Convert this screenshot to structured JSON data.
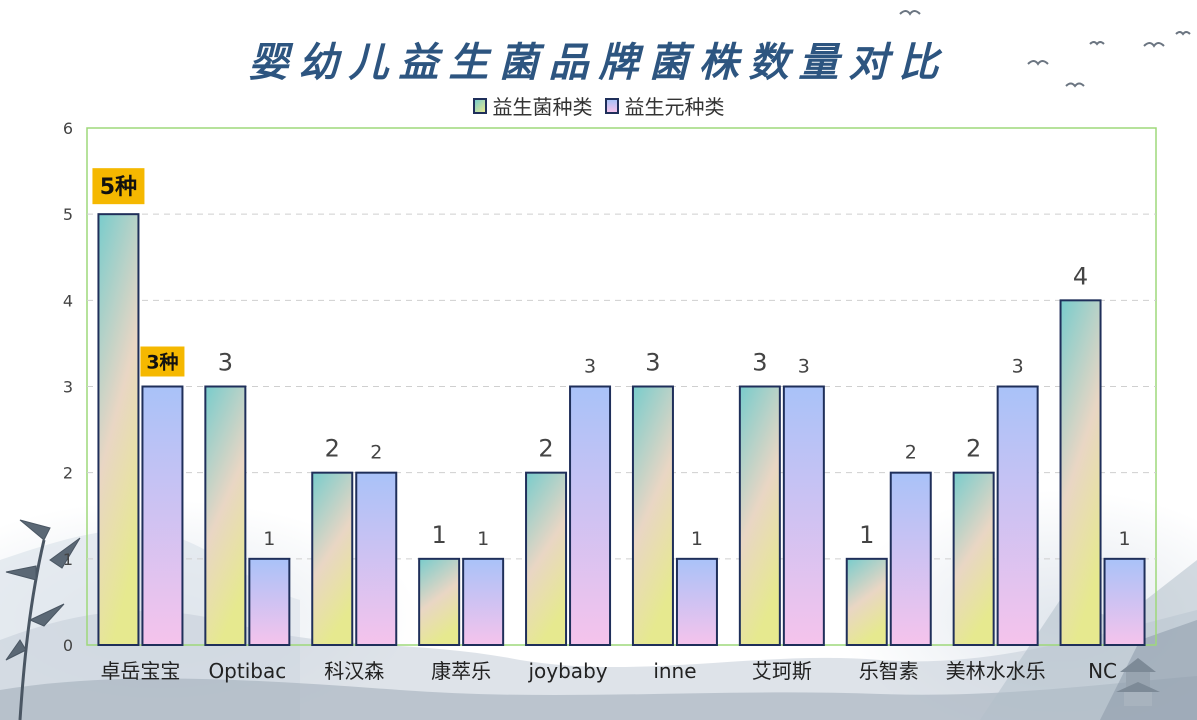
{
  "chart_data": {
    "type": "bar",
    "title": "婴幼儿益生菌品牌菌株数量对比",
    "categories": [
      "卓岳宝宝",
      "Optibac",
      "科汉森",
      "康萃乐",
      "joybaby",
      "inne",
      "艾珂斯",
      "乐智素",
      "美林水水乐",
      "NC"
    ],
    "series": [
      {
        "name": "益生菌种类",
        "values": [
          5,
          3,
          2,
          1,
          2,
          3,
          3,
          1,
          2,
          4
        ],
        "labels": [
          "5种",
          "3",
          "2",
          "1",
          "2",
          "3",
          "3",
          "1",
          "2",
          "4"
        ]
      },
      {
        "name": "益生元种类",
        "values": [
          3,
          1,
          2,
          1,
          3,
          1,
          3,
          2,
          3,
          1
        ],
        "labels": [
          "3种",
          "1",
          "2",
          "1",
          "3",
          "1",
          "3",
          "2",
          "3",
          "1"
        ]
      }
    ],
    "ylim": [
      0,
      6
    ],
    "yticks": [
      "0",
      "1",
      "2",
      "3",
      "4",
      "5",
      "6"
    ],
    "ytick_labels": [
      "0",
      "1",
      "2",
      "3",
      "4",
      "5",
      "6"
    ],
    "grid": true,
    "legend_position": "top-center",
    "colors": {
      "series1_top": "#7ecfcf",
      "series1_bottom": "#e8e893",
      "series2_top": "#a9c3f7",
      "series2_bottom": "#f2c4ef",
      "bar_border": "#1f2f5a",
      "highlight_label_bg": "#f5b800",
      "plot_border": "#9ed87a",
      "title": "#2d5580"
    }
  }
}
